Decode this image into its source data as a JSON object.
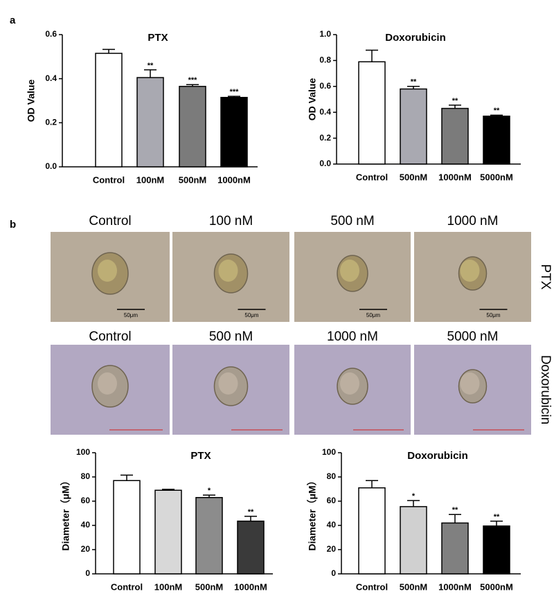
{
  "panel_labels": [
    "a",
    "b"
  ],
  "chart_data": [
    {
      "type": "bar",
      "title": "PTX",
      "ylabel": "OD Value",
      "categories": [
        "Control",
        "100nM",
        "500nM",
        "1000nM"
      ],
      "values": [
        0.515,
        0.405,
        0.365,
        0.315
      ],
      "errors": [
        0.018,
        0.035,
        0.008,
        0.005
      ],
      "sig_labels": [
        null,
        "**",
        "***",
        "***"
      ],
      "colors": [
        "#ffffff",
        "#a9a9b1",
        "#7b7b7b",
        "#000000"
      ],
      "ylim": [
        0,
        0.6
      ],
      "yticks": [
        {
          "value": 0,
          "label": "0.0"
        },
        0.2,
        0.4,
        0.6
      ]
    },
    {
      "type": "bar",
      "title": "Doxorubicin",
      "ylabel": "OD Value",
      "categories": [
        "Control",
        "500nM",
        "1000nM",
        "5000nM"
      ],
      "values": [
        0.79,
        0.58,
        0.43,
        0.37
      ],
      "errors": [
        0.09,
        0.02,
        0.025,
        0.008
      ],
      "sig_labels": [
        null,
        "**",
        "**",
        "**"
      ],
      "colors": [
        "#ffffff",
        "#a9a9b1",
        "#7b7b7b",
        "#000000"
      ],
      "ylim": [
        0,
        1.0
      ],
      "yticks": [
        {
          "value": 0,
          "label": "0.0"
        },
        0.2,
        0.4,
        0.6,
        0.8,
        {
          "value": 1,
          "label": "1.0"
        }
      ]
    },
    {
      "type": "bar",
      "title": "PTX",
      "ylabel": "Diameter（μM）",
      "categories": [
        "Control",
        "100nM",
        "500nM",
        "1000nM"
      ],
      "values": [
        77,
        69,
        63,
        43.5
      ],
      "errors": [
        4.5,
        0.8,
        2,
        4
      ],
      "sig_labels": [
        null,
        null,
        "*",
        "**"
      ],
      "colors": [
        "#ffffff",
        "#d8d8d8",
        "#8c8c8c",
        "#3a3a3a"
      ],
      "ylim": [
        0,
        100
      ],
      "yticks": [
        0,
        20,
        40,
        60,
        80,
        100
      ]
    },
    {
      "type": "bar",
      "title": "Doxorubicin",
      "ylabel": "Diameter（μM）",
      "categories": [
        "Control",
        "500nM",
        "1000nM",
        "5000nM"
      ],
      "values": [
        71,
        55.5,
        42,
        39.5
      ],
      "errors": [
        6,
        5,
        7,
        4
      ],
      "sig_labels": [
        null,
        "*",
        "**",
        "**"
      ],
      "colors": [
        "#ffffff",
        "#d0d0d0",
        "#808080",
        "#000000"
      ],
      "ylim": [
        0,
        100
      ],
      "yticks": [
        0,
        20,
        40,
        60,
        80,
        100
      ]
    }
  ],
  "images": {
    "ptx": {
      "label": "PTX",
      "columns": [
        "Control",
        "100 nM",
        "500 nM",
        "1000 nM"
      ],
      "scale_bar": "50μm"
    },
    "doxorubicin": {
      "label": "Doxorubicin",
      "columns": [
        "Control",
        "500 nM",
        "1000 nM",
        "5000 nM"
      ]
    }
  }
}
